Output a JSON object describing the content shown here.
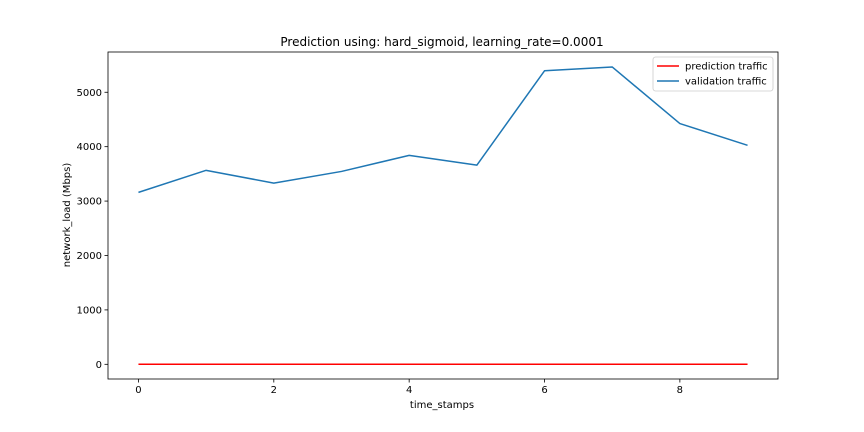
{
  "chart_data": {
    "type": "line",
    "title": "Prediction using: hard_sigmoid, learning_rate=0.0001",
    "xlabel": "time_stamps",
    "ylabel": "network_load (Mbps)",
    "x": [
      0,
      1,
      2,
      3,
      4,
      5,
      6,
      7,
      8,
      9
    ],
    "xlim": [
      -0.45,
      9.45
    ],
    "ylim": [
      -270,
      5740
    ],
    "xticks": [
      0,
      2,
      4,
      6,
      8
    ],
    "yticks": [
      0,
      1000,
      2000,
      3000,
      4000,
      5000
    ],
    "grid": false,
    "legend_position": "top-right",
    "series": [
      {
        "name": "prediction traffic",
        "color": "#ff0000",
        "values": [
          0,
          0,
          0,
          0,
          0,
          0,
          0,
          0,
          0,
          0
        ]
      },
      {
        "name": "validation traffic",
        "color": "#1f77b4",
        "values": [
          3160,
          3565,
          3330,
          3545,
          3840,
          3660,
          5395,
          5465,
          4425,
          4025
        ]
      }
    ]
  }
}
